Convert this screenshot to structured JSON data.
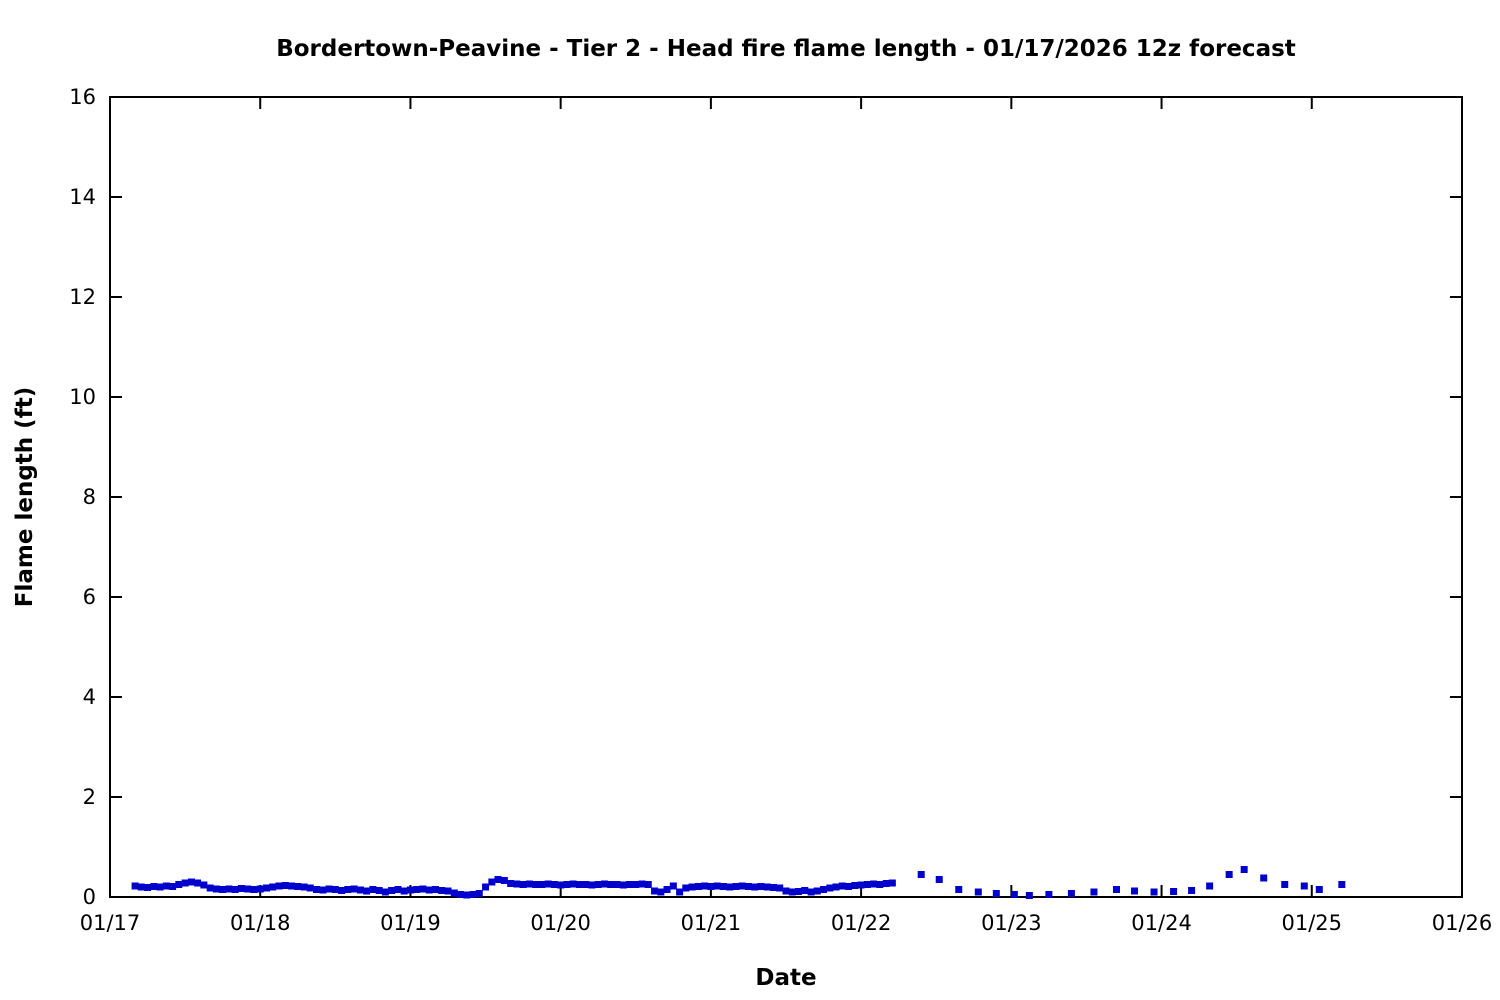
{
  "chart_data": {
    "type": "scatter",
    "title": "Bordertown-Peavine - Tier 2 - Head fire flame length - 01/17/2026 12z forecast",
    "xlabel": "Date",
    "ylabel": "Flame length (ft)",
    "marker_color": "#0000cc",
    "marker_shape": "square",
    "x_axis": {
      "min": 0,
      "max": 9,
      "tick_values": [
        0,
        1,
        2,
        3,
        4,
        5,
        6,
        7,
        8,
        9
      ],
      "tick_labels": [
        "01/17",
        "01/18",
        "01/19",
        "01/20",
        "01/21",
        "01/22",
        "01/23",
        "01/24",
        "01/25",
        "01/26"
      ]
    },
    "y_axis": {
      "min": 0,
      "max": 16,
      "tick_values": [
        0,
        2,
        4,
        6,
        8,
        10,
        12,
        14,
        16
      ],
      "tick_labels": [
        "0",
        "2",
        "4",
        "6",
        "8",
        "10",
        "12",
        "14",
        "16"
      ]
    },
    "x_unit": "days since 01/17 00:00",
    "series": [
      {
        "name": "Head fire flame length (ft)",
        "points": [
          [
            0.167,
            0.22
          ],
          [
            0.208,
            0.2
          ],
          [
            0.25,
            0.19
          ],
          [
            0.292,
            0.21
          ],
          [
            0.333,
            0.2
          ],
          [
            0.375,
            0.22
          ],
          [
            0.417,
            0.21
          ],
          [
            0.458,
            0.25
          ],
          [
            0.5,
            0.28
          ],
          [
            0.542,
            0.3
          ],
          [
            0.583,
            0.28
          ],
          [
            0.625,
            0.24
          ],
          [
            0.667,
            0.18
          ],
          [
            0.708,
            0.16
          ],
          [
            0.75,
            0.15
          ],
          [
            0.792,
            0.16
          ],
          [
            0.833,
            0.15
          ],
          [
            0.875,
            0.17
          ],
          [
            0.917,
            0.16
          ],
          [
            0.958,
            0.15
          ],
          [
            1.0,
            0.16
          ],
          [
            1.042,
            0.18
          ],
          [
            1.083,
            0.2
          ],
          [
            1.125,
            0.22
          ],
          [
            1.167,
            0.23
          ],
          [
            1.208,
            0.22
          ],
          [
            1.25,
            0.21
          ],
          [
            1.292,
            0.2
          ],
          [
            1.333,
            0.18
          ],
          [
            1.375,
            0.15
          ],
          [
            1.417,
            0.14
          ],
          [
            1.458,
            0.16
          ],
          [
            1.5,
            0.15
          ],
          [
            1.542,
            0.13
          ],
          [
            1.583,
            0.15
          ],
          [
            1.625,
            0.16
          ],
          [
            1.667,
            0.14
          ],
          [
            1.708,
            0.12
          ],
          [
            1.75,
            0.15
          ],
          [
            1.792,
            0.13
          ],
          [
            1.833,
            0.1
          ],
          [
            1.875,
            0.13
          ],
          [
            1.917,
            0.15
          ],
          [
            1.958,
            0.12
          ],
          [
            2.0,
            0.14
          ],
          [
            2.042,
            0.15
          ],
          [
            2.083,
            0.16
          ],
          [
            2.125,
            0.14
          ],
          [
            2.167,
            0.15
          ],
          [
            2.208,
            0.13
          ],
          [
            2.25,
            0.12
          ],
          [
            2.292,
            0.08
          ],
          [
            2.333,
            0.05
          ],
          [
            2.375,
            0.04
          ],
          [
            2.417,
            0.05
          ],
          [
            2.458,
            0.07
          ],
          [
            2.5,
            0.2
          ],
          [
            2.542,
            0.3
          ],
          [
            2.583,
            0.35
          ],
          [
            2.625,
            0.33
          ],
          [
            2.667,
            0.27
          ],
          [
            2.708,
            0.26
          ],
          [
            2.75,
            0.25
          ],
          [
            2.792,
            0.26
          ],
          [
            2.833,
            0.25
          ],
          [
            2.875,
            0.25
          ],
          [
            2.917,
            0.26
          ],
          [
            2.958,
            0.25
          ],
          [
            3.0,
            0.24
          ],
          [
            3.042,
            0.25
          ],
          [
            3.083,
            0.26
          ],
          [
            3.125,
            0.25
          ],
          [
            3.167,
            0.25
          ],
          [
            3.208,
            0.24
          ],
          [
            3.25,
            0.25
          ],
          [
            3.292,
            0.26
          ],
          [
            3.333,
            0.25
          ],
          [
            3.375,
            0.25
          ],
          [
            3.417,
            0.24
          ],
          [
            3.458,
            0.25
          ],
          [
            3.5,
            0.25
          ],
          [
            3.542,
            0.26
          ],
          [
            3.583,
            0.25
          ],
          [
            3.625,
            0.12
          ],
          [
            3.667,
            0.1
          ],
          [
            3.708,
            0.15
          ],
          [
            3.75,
            0.22
          ],
          [
            3.792,
            0.1
          ],
          [
            3.833,
            0.18
          ],
          [
            3.875,
            0.2
          ],
          [
            3.917,
            0.21
          ],
          [
            3.958,
            0.22
          ],
          [
            4.0,
            0.21
          ],
          [
            4.042,
            0.22
          ],
          [
            4.083,
            0.21
          ],
          [
            4.125,
            0.2
          ],
          [
            4.167,
            0.21
          ],
          [
            4.208,
            0.22
          ],
          [
            4.25,
            0.21
          ],
          [
            4.292,
            0.2
          ],
          [
            4.333,
            0.21
          ],
          [
            4.375,
            0.2
          ],
          [
            4.417,
            0.19
          ],
          [
            4.458,
            0.18
          ],
          [
            4.5,
            0.12
          ],
          [
            4.542,
            0.1
          ],
          [
            4.583,
            0.11
          ],
          [
            4.625,
            0.13
          ],
          [
            4.667,
            0.1
          ],
          [
            4.708,
            0.12
          ],
          [
            4.75,
            0.15
          ],
          [
            4.792,
            0.18
          ],
          [
            4.833,
            0.2
          ],
          [
            4.875,
            0.22
          ],
          [
            4.917,
            0.21
          ],
          [
            4.958,
            0.23
          ],
          [
            5.0,
            0.24
          ],
          [
            5.042,
            0.25
          ],
          [
            5.083,
            0.26
          ],
          [
            5.125,
            0.25
          ],
          [
            5.167,
            0.27
          ],
          [
            5.208,
            0.28
          ],
          [
            5.4,
            0.45
          ],
          [
            5.52,
            0.35
          ],
          [
            5.65,
            0.15
          ],
          [
            5.78,
            0.1
          ],
          [
            5.9,
            0.07
          ],
          [
            6.02,
            0.05
          ],
          [
            6.12,
            0.03
          ],
          [
            6.25,
            0.05
          ],
          [
            6.4,
            0.07
          ],
          [
            6.55,
            0.1
          ],
          [
            6.7,
            0.15
          ],
          [
            6.82,
            0.12
          ],
          [
            6.95,
            0.1
          ],
          [
            7.08,
            0.11
          ],
          [
            7.2,
            0.13
          ],
          [
            7.32,
            0.22
          ],
          [
            7.45,
            0.45
          ],
          [
            7.55,
            0.55
          ],
          [
            7.68,
            0.38
          ],
          [
            7.82,
            0.25
          ],
          [
            7.95,
            0.22
          ],
          [
            8.05,
            0.15
          ],
          [
            8.2,
            0.25
          ]
        ]
      }
    ],
    "legend": "none",
    "grid": false
  }
}
